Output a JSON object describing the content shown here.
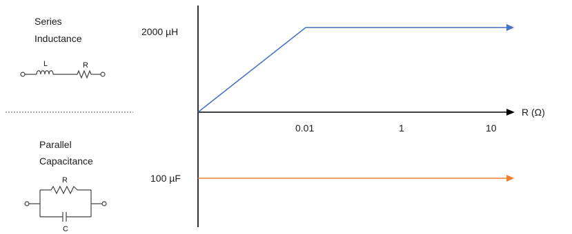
{
  "series_block": {
    "title_line1": "Series",
    "title_line2": "Inductance",
    "inductor_label": "L",
    "resistor_label": "R"
  },
  "parallel_block": {
    "title_line1": "Parallel",
    "title_line2": "Capacitance",
    "resistor_label": "R",
    "capacitor_label": "C"
  },
  "plot": {
    "x_axis_label": "R (Ω)",
    "x_ticks": [
      "0.01",
      "1",
      "10"
    ],
    "inductance_level_label": "2000 µH",
    "capacitance_level_label": "100 µF",
    "inductance_series": {
      "color": "#4472c4",
      "points": [
        {
          "r": "0",
          "value": "0 µH"
        },
        {
          "r": "0.01",
          "value": "2000 µH"
        },
        {
          "r": "10",
          "value": "2000 µH"
        }
      ]
    },
    "capacitance_series": {
      "color": "#ed7d31",
      "points": [
        {
          "r": "0",
          "value": "100 µF"
        },
        {
          "r": "10",
          "value": "100 µF"
        }
      ]
    }
  }
}
